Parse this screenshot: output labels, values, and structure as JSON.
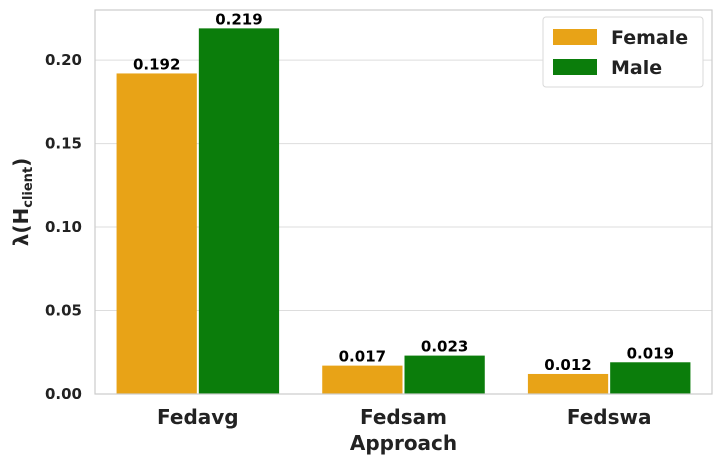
{
  "chart_data": {
    "type": "bar",
    "categories": [
      "Fedavg",
      "Fedsam",
      "Fedswa"
    ],
    "series": [
      {
        "name": "Female",
        "values": [
          0.192,
          0.017,
          0.012
        ],
        "color": "#e8a317",
        "labels": [
          "0.192",
          "0.017",
          "0.012"
        ]
      },
      {
        "name": "Male",
        "values": [
          0.219,
          0.023,
          0.019
        ],
        "color": "#0b7d0b",
        "labels": [
          "0.219",
          "0.023",
          "0.019"
        ]
      }
    ],
    "xlabel": "Approach",
    "ylabel_main": "λ(H",
    "ylabel_sub": "client",
    "ylabel_close": ")",
    "ylim": [
      0,
      0.23
    ],
    "yticks": [
      0.0,
      0.05,
      0.1,
      0.15,
      0.2
    ],
    "ytick_labels": [
      "0.00",
      "0.05",
      "0.10",
      "0.15",
      "0.20"
    ],
    "grid": true,
    "legend_position": "top-right"
  }
}
